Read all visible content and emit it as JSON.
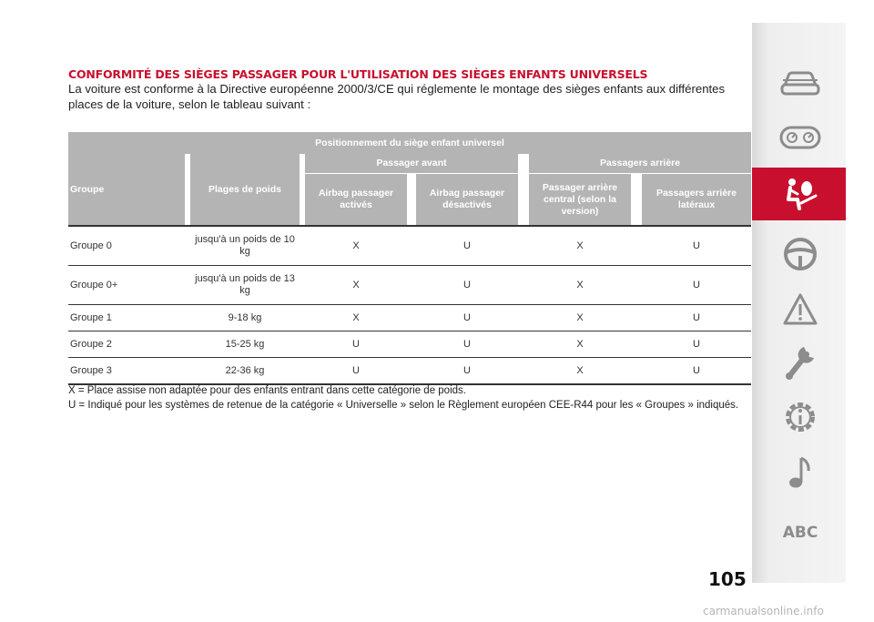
{
  "heading": "CONFORMITÉ DES SIÈGES PASSAGER POUR L'UTILISATION DES SIÈGES ENFANTS UNIVERSELS",
  "intro": "La voiture est conforme à la Directive européenne 2000/3/CE qui réglemente le montage des sièges enfants aux différentes places de la voiture, selon le tableau suivant :",
  "table": {
    "title": "Positionnement du siège enfant universel",
    "col_group": "Groupe",
    "col_weight": "Plages de poids",
    "front_header": "Passager avant",
    "rear_header": "Passagers arrière",
    "col_airbag_on": "Airbag passager activés",
    "col_airbag_off": "Airbag passager désactivés",
    "col_rear_center": "Passager arrière central (selon la version)",
    "col_rear_side": "Passagers arrière latéraux",
    "rows": [
      {
        "group": "Groupe 0",
        "weight": "jusqu'à un poids de 10 kg",
        "airbag_on": "X",
        "airbag_off": "U",
        "rear_center": "X",
        "rear_side": "U"
      },
      {
        "group": "Groupe 0+",
        "weight": "jusqu'à un poids de 13 kg",
        "airbag_on": "X",
        "airbag_off": "U",
        "rear_center": "X",
        "rear_side": "U"
      },
      {
        "group": "Groupe 1",
        "weight": "9-18 kg",
        "airbag_on": "X",
        "airbag_off": "U",
        "rear_center": "X",
        "rear_side": "U"
      },
      {
        "group": "Groupe 2",
        "weight": "15-25 kg",
        "airbag_on": "U",
        "airbag_off": "U",
        "rear_center": "X",
        "rear_side": "U"
      },
      {
        "group": "Groupe 3",
        "weight": "22-36 kg",
        "airbag_on": "U",
        "airbag_off": "U",
        "rear_center": "X",
        "rear_side": "U"
      }
    ]
  },
  "notes": {
    "x": "X = Place assise non adaptée pour des enfants entrant dans cette catégorie de poids.",
    "u": "U = Indiqué pour les systèmes de retenue de la catégorie « Universelle » selon le Règlement européen CEE-R44 pour les « Groupes » indiqués."
  },
  "page_number": "105",
  "sidebar": {
    "items": [
      {
        "icon": "car-icon",
        "active": false
      },
      {
        "icon": "dashboard-gauges-icon",
        "active": false
      },
      {
        "icon": "seat-airbag-safety-icon",
        "active": true
      },
      {
        "icon": "steering-wheel-icon",
        "active": false
      },
      {
        "icon": "warning-triangle-icon",
        "active": false
      },
      {
        "icon": "wrench-icon",
        "active": false
      },
      {
        "icon": "technical-info-gear-icon",
        "active": false
      },
      {
        "icon": "music-note-icon",
        "active": false
      },
      {
        "icon": "abc-index",
        "label": "ABC",
        "active": false
      }
    ]
  },
  "watermark": "carmanualsonline.info",
  "colors": {
    "heading": "#c8102e",
    "header_bg": "#b4b4b4",
    "active_tab": "#c8102e",
    "icon": "#8c8c8c"
  }
}
